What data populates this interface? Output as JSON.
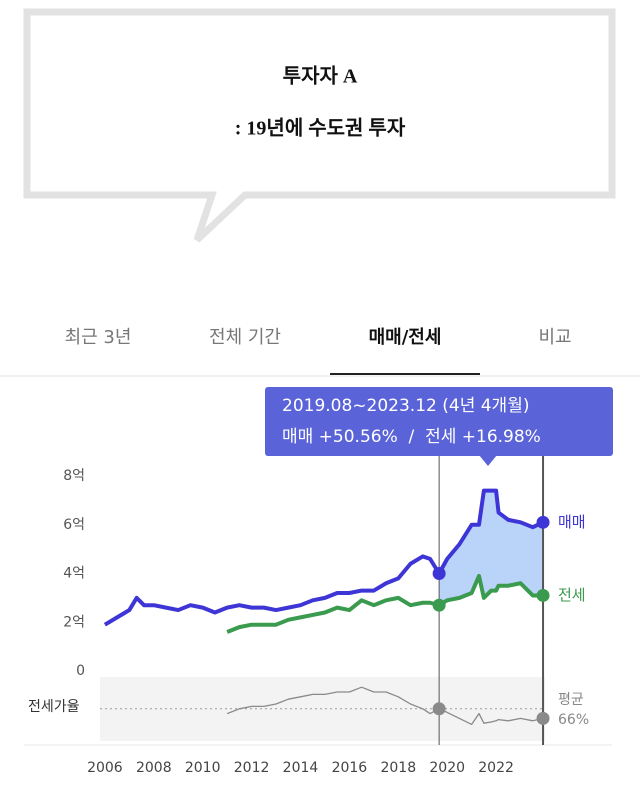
{
  "callout": {
    "title": "투자자 A",
    "subtitle": ": 19년에 수도권 투자"
  },
  "tabs": {
    "items": [
      "최근 3년",
      "전체 기간",
      "매매/전세",
      "비교"
    ],
    "active": 2
  },
  "chart_data": {
    "type": "line",
    "x": [
      2006,
      2006.5,
      2007,
      2007.3,
      2007.6,
      2008,
      2008.5,
      2009,
      2009.5,
      2010,
      2010.5,
      2011,
      2011.5,
      2012,
      2012.5,
      2013,
      2013.5,
      2014,
      2014.5,
      2015,
      2015.5,
      2016,
      2016.5,
      2017,
      2017.5,
      2018,
      2018.5,
      2019,
      2019.3,
      2019.67,
      2020,
      2020.5,
      2021,
      2021.3,
      2021.5,
      2021.8,
      2022,
      2022.1,
      2022.5,
      2023,
      2023.5,
      2023.92
    ],
    "series": [
      {
        "name": "매매",
        "color": "#3d35d6",
        "values": [
          1.9,
          2.2,
          2.5,
          3.0,
          2.7,
          2.7,
          2.6,
          2.5,
          2.7,
          2.6,
          2.4,
          2.6,
          2.7,
          2.6,
          2.6,
          2.5,
          2.6,
          2.7,
          2.9,
          3.0,
          3.2,
          3.2,
          3.3,
          3.3,
          3.6,
          3.8,
          4.4,
          4.7,
          4.6,
          4.0,
          4.6,
          5.2,
          6.0,
          6.0,
          7.4,
          7.4,
          7.4,
          6.5,
          6.2,
          6.1,
          5.9,
          6.1
        ]
      },
      {
        "name": "전세",
        "color": "#3a9a4e",
        "values": [
          null,
          null,
          null,
          null,
          null,
          null,
          null,
          null,
          null,
          null,
          null,
          1.6,
          1.8,
          1.9,
          1.9,
          1.9,
          2.1,
          2.2,
          2.3,
          2.4,
          2.6,
          2.5,
          2.9,
          2.7,
          2.9,
          3.0,
          2.7,
          2.8,
          2.8,
          2.7,
          2.9,
          3.0,
          3.2,
          3.9,
          3.0,
          3.3,
          3.3,
          3.5,
          3.5,
          3.6,
          3.1,
          3.1
        ]
      },
      {
        "name": "전세가율",
        "color": "#8a8a8a",
        "axis": "y2",
        "average": 66,
        "average_name": "평균",
        "average_label": "66%",
        "values": [
          null,
          null,
          null,
          null,
          null,
          null,
          null,
          null,
          null,
          null,
          null,
          62,
          66,
          68,
          68,
          70,
          74,
          76,
          78,
          78,
          80,
          80,
          84,
          80,
          80,
          76,
          70,
          66,
          62,
          66,
          63,
          58,
          53,
          62,
          54,
          55,
          56,
          57,
          56,
          58,
          56,
          58
        ]
      }
    ],
    "xlim": [
      2005.8,
      2024.0
    ],
    "xticks": [
      2006,
      2008,
      2010,
      2012,
      2014,
      2016,
      2018,
      2020,
      2022
    ],
    "ylim": [
      0,
      8
    ],
    "yticks": [
      0,
      {
        "value": 2,
        "label": "2억"
      },
      {
        "value": 4,
        "label": "4억"
      },
      {
        "value": 6,
        "label": "6억"
      },
      {
        "value": 8,
        "label": "8억"
      }
    ],
    "y2lim": [
      40,
      90
    ],
    "highlight": {
      "start": 2019.67,
      "end": 2023.92,
      "label": "2019.08~2023.12 (4년 4개월)",
      "change_label": "매매 +50.56%  /  전세 +16.98%"
    }
  }
}
